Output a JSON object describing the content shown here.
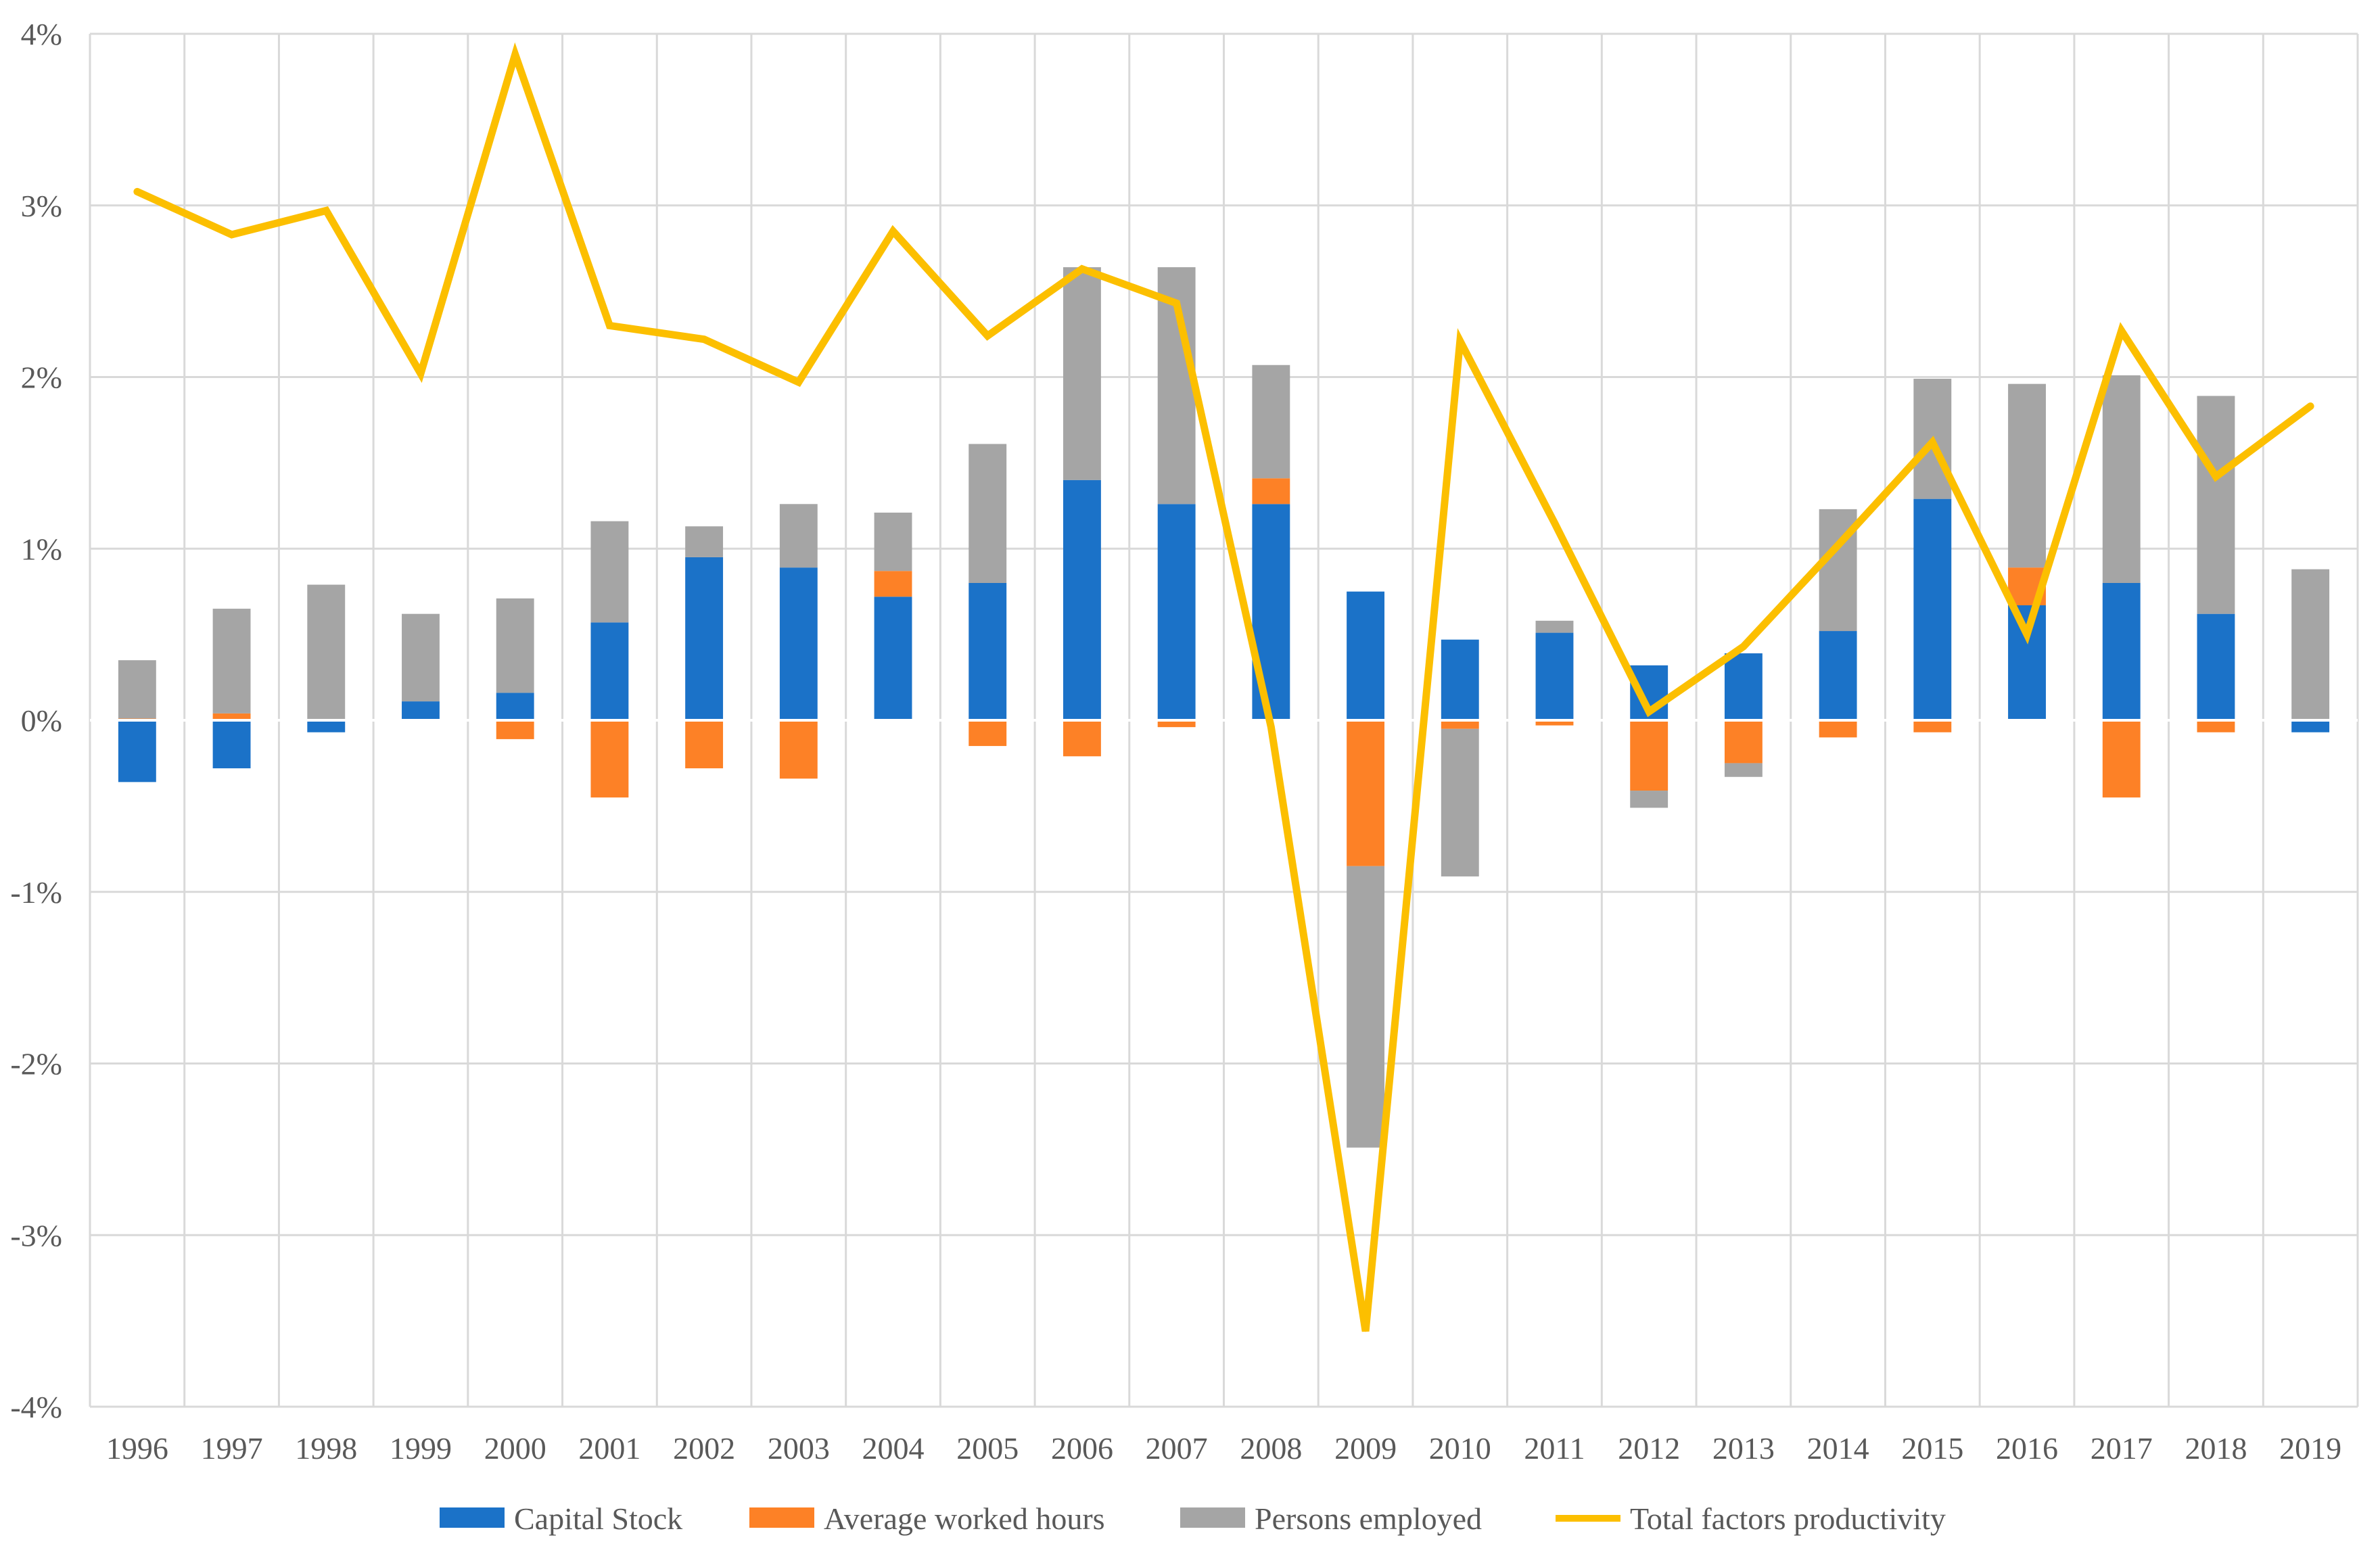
{
  "chart_data": {
    "type": "bar",
    "stacked": true,
    "title": "",
    "xlabel": "",
    "ylabel": "",
    "ylim": [
      -4,
      4
    ],
    "y_ticks": [
      "4%",
      "3%",
      "2%",
      "1%",
      "0%",
      "-1%",
      "-2%",
      "-3%",
      "-4%"
    ],
    "y_tick_values": [
      4,
      3,
      2,
      1,
      0,
      -1,
      -2,
      -3,
      -4
    ],
    "categories": [
      "1996",
      "1997",
      "1998",
      "1999",
      "2000",
      "2001",
      "2002",
      "2003",
      "2004",
      "2005",
      "2006",
      "2007",
      "2008",
      "2009",
      "2010",
      "2011",
      "2012",
      "2013",
      "2014",
      "2015",
      "2016",
      "2017",
      "2018",
      "2019"
    ],
    "series": [
      {
        "name": "Capital Stock",
        "kind": "bar",
        "color": "#1b72c8",
        "values": [
          -0.36,
          -0.28,
          -0.07,
          0.11,
          0.16,
          0.57,
          0.95,
          0.89,
          0.72,
          0.8,
          1.4,
          1.26,
          1.26,
          0.75,
          0.47,
          0.51,
          0.32,
          0.39,
          0.52,
          1.29,
          0.67,
          0.8,
          0.62,
          -0.07
        ]
      },
      {
        "name": "Average worked hours",
        "kind": "bar",
        "color": "#fd8126",
        "values": [
          0.01,
          0.04,
          0.0,
          0.0,
          -0.11,
          -0.45,
          -0.28,
          -0.34,
          0.15,
          -0.15,
          -0.21,
          -0.04,
          0.15,
          -0.85,
          -0.05,
          -0.03,
          -0.41,
          -0.25,
          -0.1,
          -0.07,
          0.22,
          -0.45,
          -0.07,
          0.0
        ]
      },
      {
        "name": "Persons employed",
        "kind": "bar",
        "color": "#a5a5a5",
        "values": [
          0.34,
          0.61,
          0.79,
          0.51,
          0.55,
          0.59,
          0.18,
          0.37,
          0.34,
          0.81,
          1.24,
          1.38,
          0.66,
          -1.64,
          -0.86,
          0.07,
          -0.1,
          -0.08,
          0.71,
          0.7,
          1.07,
          1.21,
          1.27,
          0.88
        ]
      },
      {
        "name": "Total factors productivity",
        "kind": "line",
        "color": "#fcbf00",
        "values": [
          3.08,
          2.83,
          2.97,
          2.02,
          3.88,
          2.3,
          2.22,
          1.97,
          2.85,
          2.24,
          2.63,
          2.43,
          -0.04,
          -3.56,
          2.21,
          1.15,
          0.05,
          0.43,
          1.02,
          1.62,
          0.5,
          2.27,
          1.42,
          1.83
        ]
      }
    ],
    "legend_position": "bottom",
    "grid": true
  }
}
